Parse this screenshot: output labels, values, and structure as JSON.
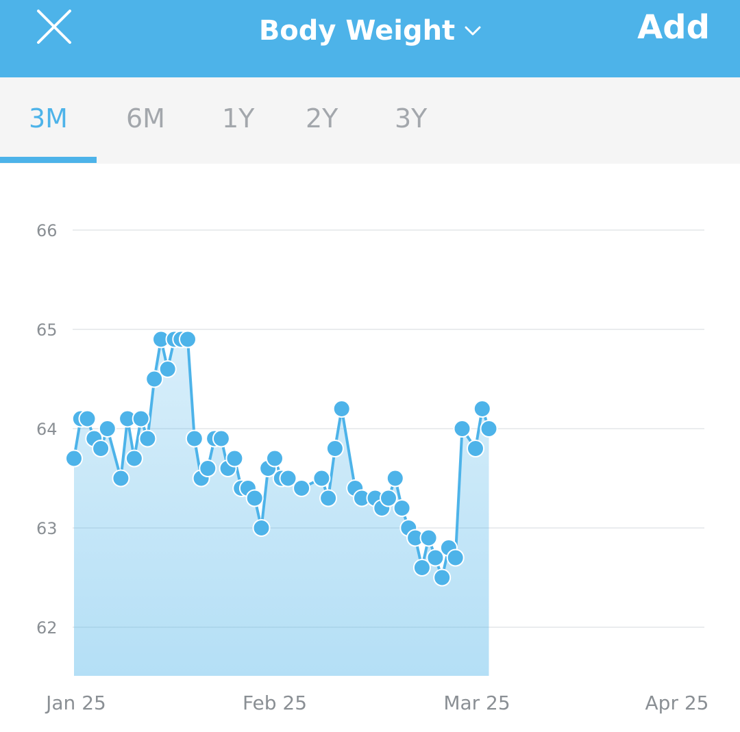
{
  "header": {
    "title": "Body Weight",
    "add_label": "Add",
    "close_icon": "close-icon",
    "dropdown_icon": "chevron-down-icon",
    "bg_color": "#4db3e9"
  },
  "tabs": [
    {
      "label": "3M",
      "active": true
    },
    {
      "label": "6M",
      "active": false
    },
    {
      "label": "1Y",
      "active": false
    },
    {
      "label": "2Y",
      "active": false
    },
    {
      "label": "3Y",
      "active": false
    }
  ],
  "chart_data": {
    "type": "area",
    "title": "",
    "xlabel": "",
    "ylabel": "",
    "x_ticks": [
      "Jan 25",
      "Feb 25",
      "Mar 25",
      "Apr 25"
    ],
    "y_ticks": [
      "66",
      "65",
      "64",
      "63",
      "62"
    ],
    "ylim": [
      61.5,
      66.0
    ],
    "xlim": [
      "2019-01-25",
      "2019-04-25"
    ],
    "grid": true,
    "color": "#4db3e9",
    "series": [
      {
        "x": [
          "2019-01-25",
          "2019-01-26",
          "2019-01-27",
          "2019-01-28",
          "2019-01-29",
          "2019-01-30",
          "2019-02-01",
          "2019-02-02",
          "2019-02-03",
          "2019-02-04",
          "2019-02-05",
          "2019-02-06",
          "2019-02-07",
          "2019-02-08",
          "2019-02-09",
          "2019-02-10",
          "2019-02-11",
          "2019-02-12",
          "2019-02-13",
          "2019-02-14",
          "2019-02-15",
          "2019-02-16",
          "2019-02-17",
          "2019-02-18",
          "2019-02-19",
          "2019-02-20",
          "2019-02-21",
          "2019-02-22",
          "2019-02-23",
          "2019-02-24",
          "2019-02-25",
          "2019-02-26",
          "2019-02-28",
          "2019-03-03",
          "2019-03-04",
          "2019-03-05",
          "2019-03-06",
          "2019-03-08",
          "2019-03-09",
          "2019-03-11",
          "2019-03-12",
          "2019-03-13",
          "2019-03-14",
          "2019-03-15",
          "2019-03-16",
          "2019-03-17",
          "2019-03-18",
          "2019-03-19",
          "2019-03-20",
          "2019-03-21",
          "2019-03-22",
          "2019-03-23",
          "2019-03-24",
          "2019-03-26",
          "2019-03-27",
          "2019-03-28",
          "2019-03-30",
          "2019-03-31",
          "2019-04-01",
          "2019-04-02",
          "2019-04-03"
        ],
        "y": [
          63.7,
          64.1,
          64.1,
          63.9,
          63.8,
          64.0,
          63.5,
          64.1,
          63.7,
          64.1,
          63.9,
          64.5,
          64.9,
          64.6,
          64.9,
          64.9,
          64.9,
          63.9,
          63.5,
          63.6,
          63.9,
          63.9,
          63.6,
          63.7,
          63.4,
          63.4,
          63.3,
          63.0,
          63.6,
          63.7,
          63.5,
          63.5,
          63.4,
          63.5,
          63.3,
          63.8,
          64.2,
          63.4,
          63.3,
          63.3,
          63.2,
          63.3,
          63.5,
          63.2,
          63.0,
          62.9,
          62.6,
          62.9,
          62.7,
          62.5,
          62.8,
          62.7,
          64.0,
          63.8,
          64.2,
          64.0,
          null,
          null,
          null,
          null,
          null
        ]
      }
    ]
  }
}
